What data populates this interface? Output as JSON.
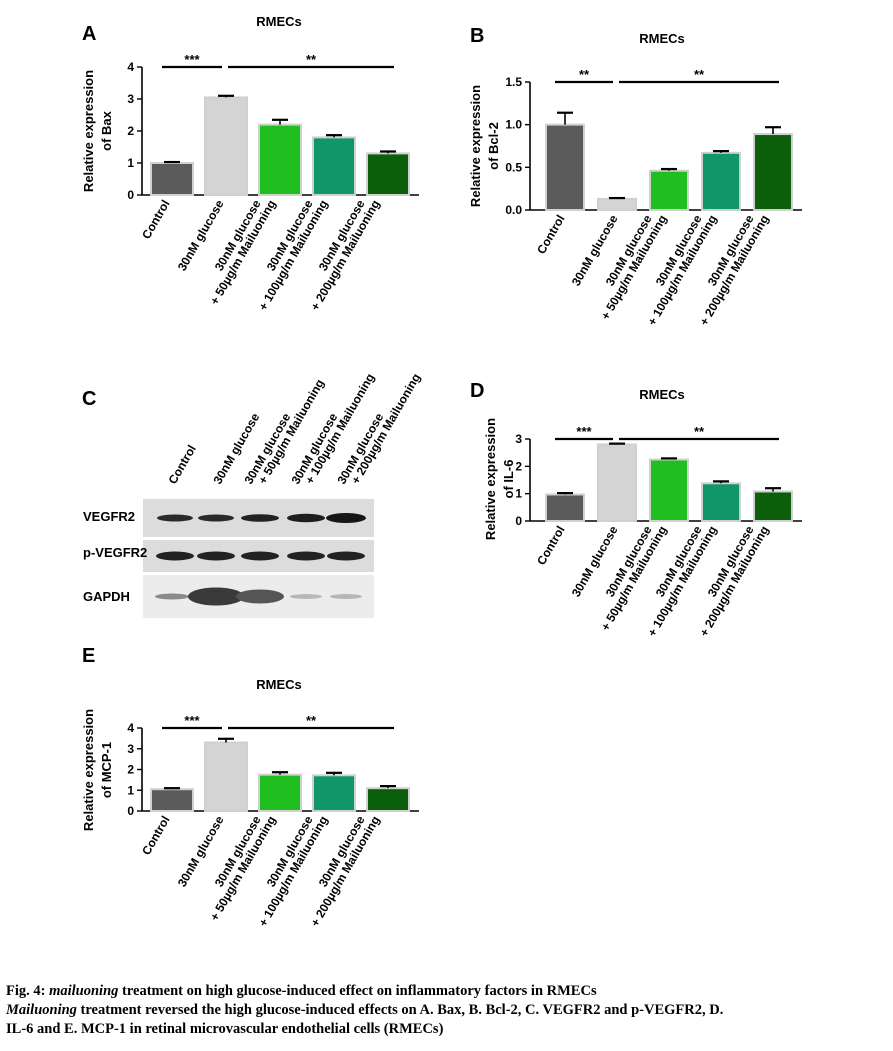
{
  "categories": [
    [
      "Control"
    ],
    [
      "30nM glucose"
    ],
    [
      "30nM glucose",
      "+ 50µg/m Mailuoning"
    ],
    [
      "30nM glucose",
      "+ 100µg/m Mailuoning"
    ],
    [
      "30nM glucose",
      "+ 200µg/m Mailuoning"
    ]
  ],
  "bar_colors": [
    "#5b5b5b",
    "#d4d4d4",
    "#1fbf1f",
    "#11966a",
    "#0b5f0b"
  ],
  "chart_data": [
    {
      "panel": "A",
      "type": "bar",
      "title": "RMECs",
      "ylabel": [
        "Relative expression",
        "of Bax"
      ],
      "ylim": [
        0,
        4
      ],
      "yticks": [
        "0",
        "1",
        "2",
        "3",
        "4"
      ],
      "values": [
        1.0,
        3.05,
        2.2,
        1.8,
        1.3
      ],
      "errors": [
        0.03,
        0.05,
        0.15,
        0.07,
        0.06
      ],
      "significance": [
        {
          "label": "***",
          "from": 0,
          "to": 1
        },
        {
          "label": "**",
          "from": 1,
          "to": 4
        }
      ]
    },
    {
      "panel": "B",
      "type": "bar",
      "title": "RMECs",
      "ylabel": [
        "Relative expression",
        "of Bcl-2"
      ],
      "ylim": [
        0,
        1.5
      ],
      "yticks": [
        "0.0",
        "0.5",
        "1.0",
        "1.5"
      ],
      "values": [
        1.0,
        0.13,
        0.46,
        0.67,
        0.89
      ],
      "errors": [
        0.14,
        0.01,
        0.02,
        0.02,
        0.08
      ],
      "significance": [
        {
          "label": "**",
          "from": 0,
          "to": 1
        },
        {
          "label": "**",
          "from": 1,
          "to": 4
        }
      ]
    },
    {
      "panel": "D",
      "type": "bar",
      "title": "RMECs",
      "ylabel": [
        "Relative expression",
        "of IL-6"
      ],
      "ylim": [
        0,
        3
      ],
      "yticks": [
        "0",
        "1",
        "2",
        "3"
      ],
      "values": [
        0.97,
        2.8,
        2.25,
        1.38,
        1.08
      ],
      "errors": [
        0.05,
        0.03,
        0.04,
        0.07,
        0.12
      ],
      "significance": [
        {
          "label": "***",
          "from": 0,
          "to": 1
        },
        {
          "label": "**",
          "from": 1,
          "to": 4
        }
      ]
    },
    {
      "panel": "E",
      "type": "bar",
      "title": "RMECs",
      "ylabel": [
        "Relative expression",
        "of MCP-1"
      ],
      "ylim": [
        0,
        4
      ],
      "yticks": [
        "0",
        "1",
        "2",
        "3",
        "4"
      ],
      "values": [
        1.05,
        3.3,
        1.75,
        1.72,
        1.1
      ],
      "errors": [
        0.05,
        0.18,
        0.12,
        0.12,
        0.1
      ],
      "significance": [
        {
          "label": "***",
          "from": 0,
          "to": 1
        },
        {
          "label": "**",
          "from": 1,
          "to": 4
        }
      ]
    }
  ],
  "blot": {
    "panel": "C",
    "lanes": [
      [
        "Control"
      ],
      [
        "30nM glucose"
      ],
      [
        "30nM glucose",
        "+ 50µg/m Mailuoning"
      ],
      [
        "30nM glucose",
        "+ 100µg/m Mailuoning"
      ],
      [
        "30nM glucose",
        "+ 200µg/m Mailuoning"
      ]
    ],
    "rows": [
      "VEGFR2",
      "p-VEGFR2",
      "GAPDH"
    ]
  },
  "caption": {
    "line1_prefix": "Fig. 4: ",
    "line1_em": "mailuoning",
    "line1_rest": " treatment on high glucose-induced effect on inflammatory factors in RMECs",
    "line2_em": "Mailuoning",
    "line2_rest": " treatment reversed the high glucose-induced effects on A. Bax, B. Bcl-2, C. VEGFR2 and p-VEGFR2, D.",
    "line3": "IL-6 and E. MCP-1 in retinal microvascular endothelial cells (RMECs)"
  }
}
